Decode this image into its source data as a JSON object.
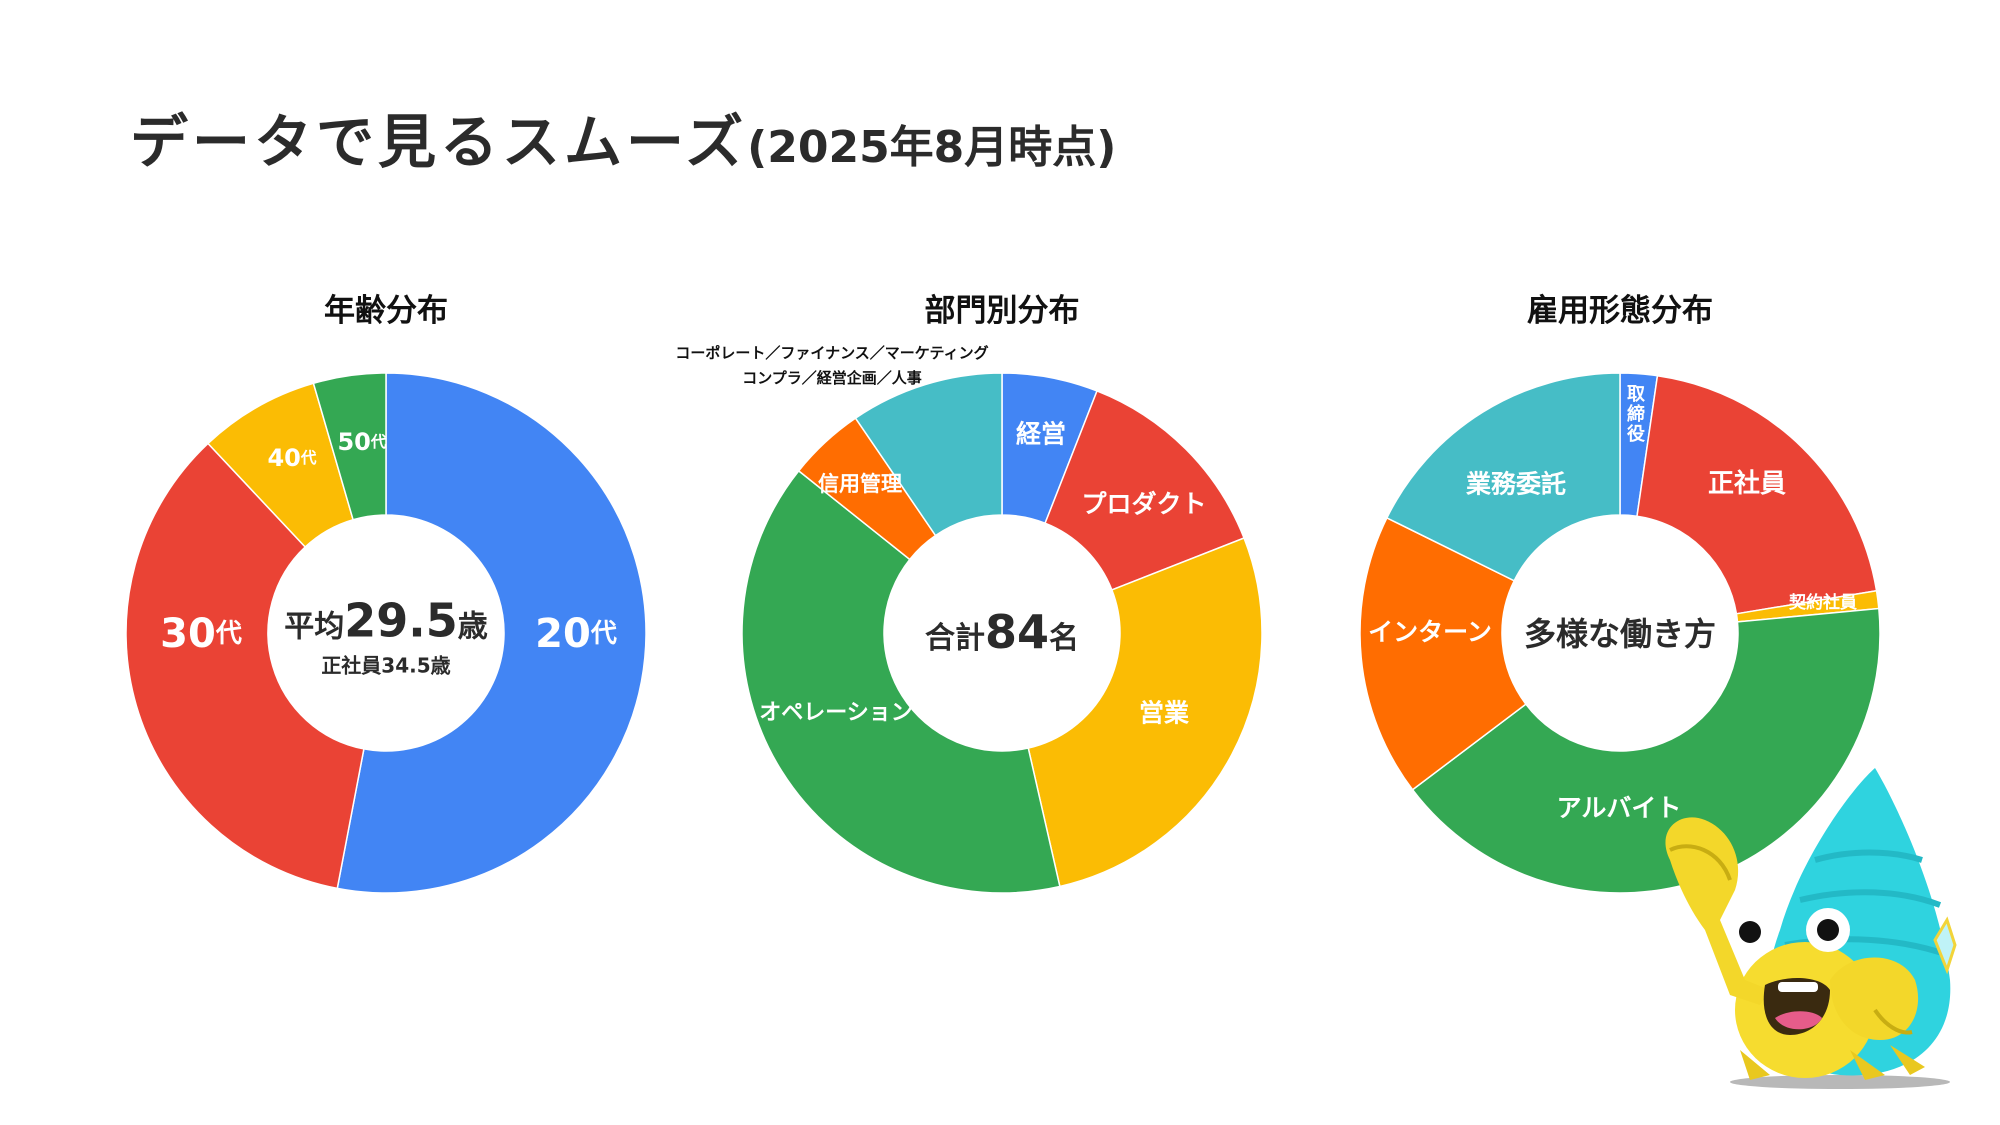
{
  "page": {
    "title_main": "データで見るスムーズ",
    "title_sub": "(2025年8月時点)"
  },
  "chart_data": [
    {
      "type": "pie",
      "donut": true,
      "title": "年齢分布",
      "center": {
        "prefix": "平均",
        "number": "29.5",
        "suffix": "歳",
        "sub": "正社員34.5歳"
      },
      "unit": "percent (approx.)",
      "categories": [
        "20代",
        "30代",
        "40代",
        "50代"
      ],
      "values": [
        53,
        35,
        7.5,
        4.5
      ],
      "colors": [
        "#4285f4",
        "#ea4335",
        "#fbbc04",
        "#34a853"
      ]
    },
    {
      "type": "pie",
      "donut": true,
      "title": "部門別分布",
      "center": {
        "prefix": "合計",
        "number": "84",
        "suffix": "名",
        "sub": ""
      },
      "unit": "people (approx.)",
      "categories": [
        "経営",
        "プロダクト",
        "営業",
        "オペレーション",
        "信用管理",
        "コーポレート／ファイナンス／マーケティング\nコンプラ／経営企画／人事"
      ],
      "values": [
        5,
        11,
        23,
        33,
        4,
        8
      ],
      "colors": [
        "#4285f4",
        "#ea4335",
        "#fbbc04",
        "#34a853",
        "#ff6d01",
        "#46bdc6"
      ],
      "outside_label_lines": [
        "コーポレート／ファイナンス／マーケティング",
        "コンプラ／経営企画／人事"
      ]
    },
    {
      "type": "pie",
      "donut": true,
      "title": "雇用形態分布",
      "center": {
        "prefix": "多様な働き方",
        "number": "",
        "suffix": "",
        "sub": ""
      },
      "unit": "percent (approx.)",
      "categories": [
        "取締役",
        "正社員",
        "契約社員",
        "アルバイト",
        "インターン",
        "業務委託"
      ],
      "values": [
        2.3,
        20.1,
        1.1,
        41.2,
        17.6,
        17.7
      ],
      "colors": [
        "#4285f4",
        "#ea4335",
        "#fbbc04",
        "#34a853",
        "#ff6d01",
        "#46bdc6"
      ]
    }
  ],
  "mascot": {
    "icon": "hermit-crab-mascot-icon"
  }
}
